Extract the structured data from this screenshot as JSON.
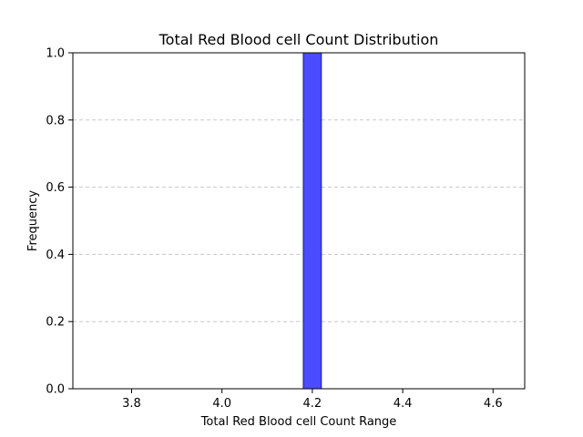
{
  "chart_data": {
    "type": "bar",
    "title": "Total Red Blood cell Count Distribution",
    "xlabel": "Total Red Blood cell Count Range",
    "ylabel": "Frequency",
    "xlim": [
      3.67,
      4.67
    ],
    "ylim": [
      0,
      1.0
    ],
    "x_ticks": [
      3.8,
      4.0,
      4.2,
      4.4,
      4.6
    ],
    "y_ticks": [
      0.0,
      0.2,
      0.4,
      0.6,
      0.8,
      1.0
    ],
    "bins": [
      {
        "x0": 3.7,
        "x1": 3.74,
        "count": 0
      },
      {
        "x0": 3.74,
        "x1": 3.78,
        "count": 0
      },
      {
        "x0": 3.78,
        "x1": 3.82,
        "count": 0
      },
      {
        "x0": 3.82,
        "x1": 3.86,
        "count": 0
      },
      {
        "x0": 3.86,
        "x1": 3.9,
        "count": 0
      },
      {
        "x0": 3.9,
        "x1": 3.94,
        "count": 0
      },
      {
        "x0": 3.94,
        "x1": 3.98,
        "count": 0
      },
      {
        "x0": 3.98,
        "x1": 4.02,
        "count": 0
      },
      {
        "x0": 4.02,
        "x1": 4.06,
        "count": 0
      },
      {
        "x0": 4.06,
        "x1": 4.1,
        "count": 0
      },
      {
        "x0": 4.1,
        "x1": 4.14,
        "count": 0
      },
      {
        "x0": 4.14,
        "x1": 4.18,
        "count": 0
      },
      {
        "x0": 4.18,
        "x1": 4.22,
        "count": 1
      },
      {
        "x0": 4.22,
        "x1": 4.26,
        "count": 0
      },
      {
        "x0": 4.26,
        "x1": 4.3,
        "count": 0
      },
      {
        "x0": 4.3,
        "x1": 4.34,
        "count": 0
      },
      {
        "x0": 4.34,
        "x1": 4.38,
        "count": 0
      },
      {
        "x0": 4.38,
        "x1": 4.42,
        "count": 0
      },
      {
        "x0": 4.42,
        "x1": 4.46,
        "count": 0
      },
      {
        "x0": 4.46,
        "x1": 4.5,
        "count": 0
      },
      {
        "x0": 4.5,
        "x1": 4.54,
        "count": 0
      },
      {
        "x0": 4.54,
        "x1": 4.58,
        "count": 0
      },
      {
        "x0": 4.58,
        "x1": 4.62,
        "count": 0
      },
      {
        "x0": 4.62,
        "x1": 4.66,
        "count": 0
      }
    ],
    "grid": "horizontal dashed",
    "bar_color": "#4b4bff",
    "bar_edge_color": "#1a1a8c",
    "grid_color": "#c8c8c8"
  }
}
